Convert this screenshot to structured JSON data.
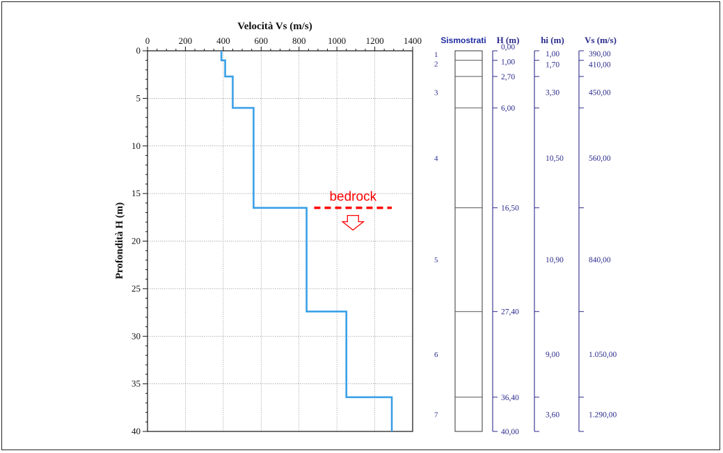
{
  "chart_data": [
    {
      "type": "line",
      "title": "Velocità Vs (m/s)",
      "xlabel": "Velocità Vs (m/s)",
      "ylabel": "Profondità H (m)",
      "xlim": [
        0,
        1400
      ],
      "ylim": [
        0,
        40
      ],
      "y_inverted": true,
      "x_axis_position": "top",
      "grid": true,
      "x_ticks": [
        0,
        200,
        400,
        600,
        800,
        1000,
        1200,
        1400
      ],
      "y_ticks": [
        0,
        5,
        10,
        15,
        20,
        25,
        30,
        35,
        40
      ],
      "series": [
        {
          "color": "#3aa0e8",
          "x": [
            390,
            390,
            410,
            410,
            450,
            450,
            560,
            560,
            840,
            840,
            1050,
            1050,
            1290,
            1290
          ],
          "y": [
            0,
            1.0,
            1.0,
            2.7,
            2.7,
            6.0,
            6.0,
            16.5,
            16.5,
            27.4,
            27.4,
            36.4,
            36.4,
            40.0
          ]
        }
      ],
      "annotations": [
        {
          "text": "bedrock",
          "color": "#ff0000",
          "depth": 16.5,
          "x_from": 880,
          "x_to": 1290
        }
      ]
    },
    {
      "type": "table",
      "columns": [
        "Sismostrati",
        "H (m)",
        "hi (m)",
        "Vs (m/s)"
      ],
      "layers": [
        {
          "id": "1",
          "top": 0.0,
          "bottom": 1.0,
          "hi": "1,00",
          "vs": "390,00"
        },
        {
          "id": "2",
          "top": 1.0,
          "bottom": 2.7,
          "hi": "1,70",
          "vs": "410,00"
        },
        {
          "id": "3",
          "top": 2.7,
          "bottom": 6.0,
          "hi": "3,30",
          "vs": "450,00"
        },
        {
          "id": "4",
          "top": 6.0,
          "bottom": 16.5,
          "hi": "10,50",
          "vs": "560,00"
        },
        {
          "id": "5",
          "top": 16.5,
          "bottom": 27.4,
          "hi": "10,90",
          "vs": "840,00"
        },
        {
          "id": "6",
          "top": 27.4,
          "bottom": 36.4,
          "hi": "9,00",
          "vs": "1.050,00"
        },
        {
          "id": "7",
          "top": 36.4,
          "bottom": 40.0,
          "hi": "3,60",
          "vs": "1.290,00"
        }
      ],
      "h_labels": [
        {
          "depth": 0.0,
          "text": "0,00"
        },
        {
          "depth": 1.0,
          "text": "1,00"
        },
        {
          "depth": 2.7,
          "text": "2,70"
        },
        {
          "depth": 6.0,
          "text": "6,00"
        },
        {
          "depth": 16.5,
          "text": "16,50"
        },
        {
          "depth": 27.4,
          "text": "27,40"
        },
        {
          "depth": 36.4,
          "text": "36,40"
        },
        {
          "depth": 40.0,
          "text": "40,00"
        }
      ]
    }
  ],
  "colors": {
    "profile_line": "#3aa0e8",
    "bedrock": "#ff0000",
    "table_text": "#2a2a8c",
    "table_header_sismostrati": "#1e2aa0"
  }
}
